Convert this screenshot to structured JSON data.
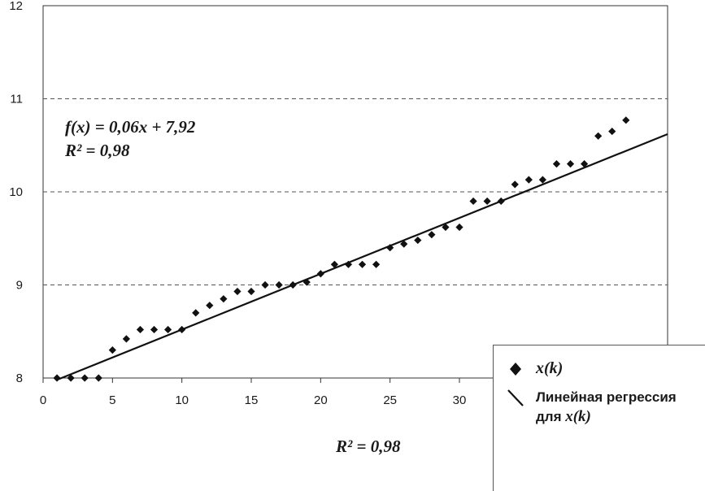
{
  "chart_data": {
    "type": "scatter",
    "xlim": [
      0,
      45
    ],
    "ylim": [
      8,
      12
    ],
    "x_ticks": [
      "0",
      "5",
      "10",
      "15",
      "20",
      "25",
      "30"
    ],
    "y_ticks": [
      "8",
      "9",
      "10",
      "11",
      "12"
    ],
    "grid": "horizontal dashed",
    "series": [
      {
        "name": "x(k)",
        "marker": "diamond",
        "color": "#111111",
        "points": [
          [
            1,
            8.0
          ],
          [
            2,
            8.0
          ],
          [
            3,
            8.0
          ],
          [
            4,
            8.0
          ],
          [
            5,
            8.3
          ],
          [
            6,
            8.42
          ],
          [
            7,
            8.52
          ],
          [
            8,
            8.52
          ],
          [
            9,
            8.52
          ],
          [
            10,
            8.52
          ],
          [
            11,
            8.7
          ],
          [
            12,
            8.78
          ],
          [
            13,
            8.85
          ],
          [
            14,
            8.93
          ],
          [
            15,
            8.93
          ],
          [
            16,
            9.0
          ],
          [
            17,
            9.0
          ],
          [
            18,
            9.0
          ],
          [
            19,
            9.03
          ],
          [
            20,
            9.12
          ],
          [
            21,
            9.22
          ],
          [
            22,
            9.22
          ],
          [
            23,
            9.22
          ],
          [
            24,
            9.22
          ],
          [
            25,
            9.4
          ],
          [
            26,
            9.44
          ],
          [
            27,
            9.48
          ],
          [
            28,
            9.54
          ],
          [
            29,
            9.62
          ],
          [
            30,
            9.62
          ],
          [
            31,
            9.9
          ],
          [
            32,
            9.9
          ],
          [
            33,
            9.9
          ],
          [
            34,
            10.08
          ],
          [
            35,
            10.13
          ],
          [
            36,
            10.13
          ],
          [
            37,
            10.3
          ],
          [
            38,
            10.3
          ],
          [
            39,
            10.3
          ],
          [
            40,
            10.6
          ],
          [
            41,
            10.65
          ],
          [
            42,
            10.77
          ]
        ]
      },
      {
        "name": "Линейная регрессия для x(k)",
        "type": "line",
        "color": "#111111",
        "slope": 0.06,
        "intercept": 7.92,
        "x_range": [
          1,
          45
        ]
      }
    ],
    "annotations": {
      "equation": "f(x) = 0,06x + 7,92",
      "r2_top": "R² = 0,98",
      "r2_bottom": "R² = 0,98"
    }
  },
  "legend": {
    "item1_label": "x(k)",
    "item2_line1": "Линейная регрессия",
    "item2_line2_prefix": "для ",
    "item2_line2_var": "x(k)"
  }
}
